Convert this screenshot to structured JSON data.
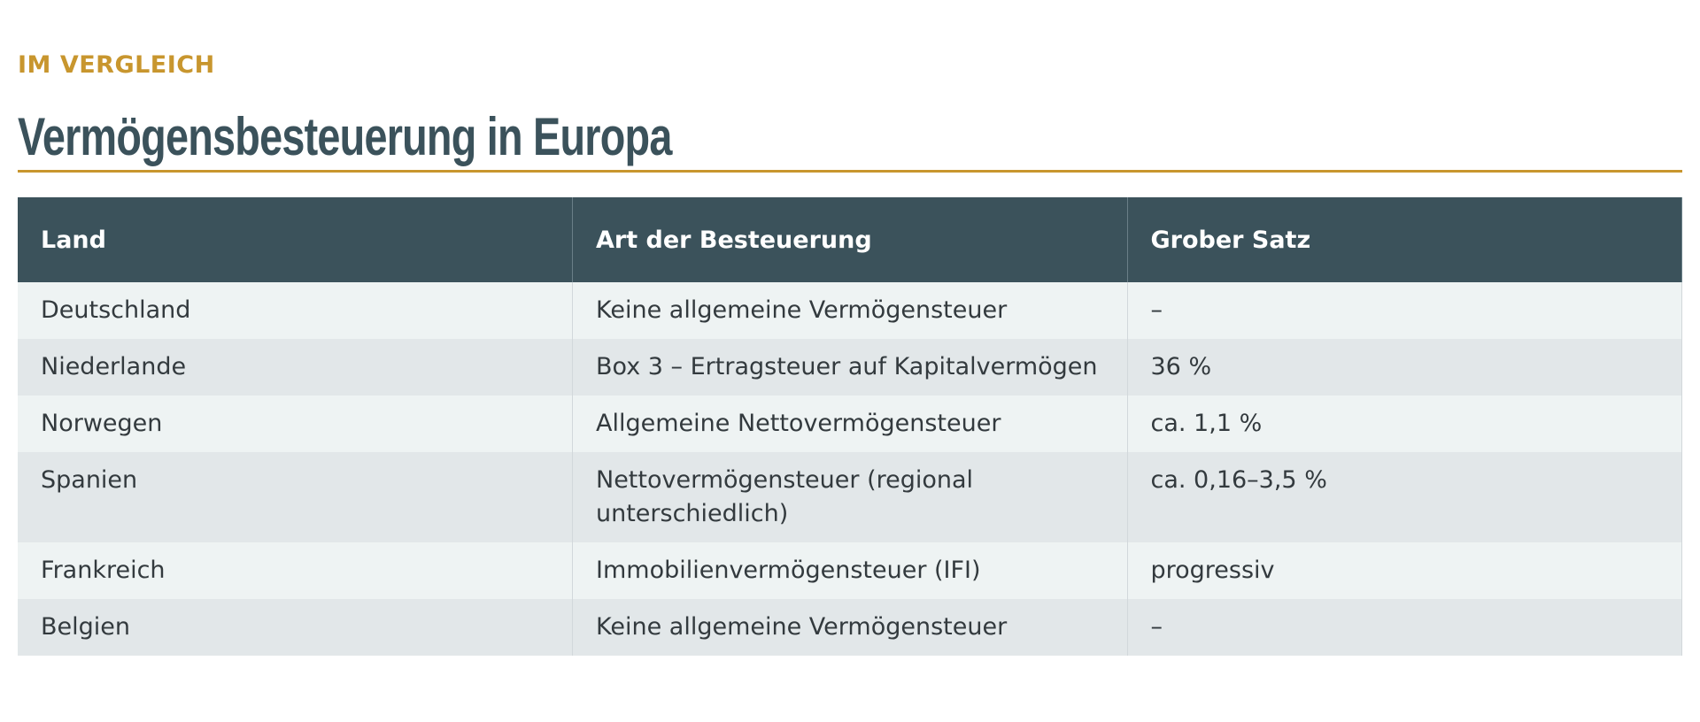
{
  "header": {
    "eyebrow": "IM VERGLEICH",
    "title": "Vermögensbesteuerung in Europa"
  },
  "table": {
    "columns": [
      "Land",
      "Art der Besteuerung",
      "Grober Satz"
    ],
    "rows": [
      [
        "Deutschland",
        "Keine allgemeine Vermögensteuer",
        "–"
      ],
      [
        "Niederlande",
        "Box 3 – Ertragsteuer auf Kapitalvermögen",
        "36 %"
      ],
      [
        "Norwegen",
        "Allgemeine Nettovermögensteuer",
        "ca. 1,1 %"
      ],
      [
        "Spanien",
        "Nettovermögensteuer (regional unterschiedlich)",
        "ca. 0,16–3,5 %"
      ],
      [
        "Frankreich",
        "Immobilienvermögensteuer (IFI)",
        "progressiv"
      ],
      [
        "Belgien",
        "Keine allgemeine Vermögensteuer",
        "–"
      ]
    ]
  }
}
